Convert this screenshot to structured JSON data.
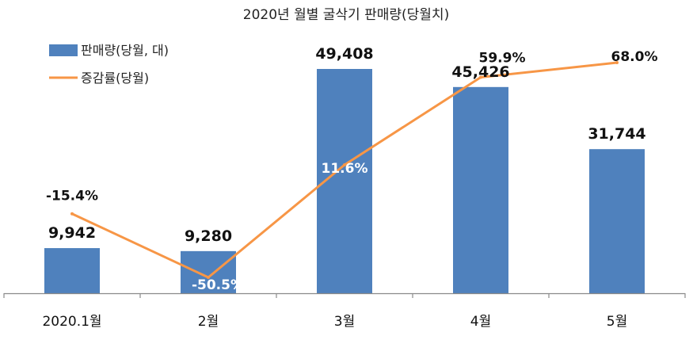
{
  "chart_data": {
    "type": "bar",
    "title": "2020년 월별 굴삭기 판매량(당월치)",
    "categories": [
      "2020.1월",
      "2월",
      "3월",
      "4월",
      "5월"
    ],
    "series": [
      {
        "name": "판매량(당월, 대)",
        "type": "bar",
        "values": [
          9942,
          9280,
          49408,
          45426,
          31744
        ],
        "labels": [
          "9,942",
          "9,280",
          "49,408",
          "45,426",
          "31,744"
        ],
        "color": "#4f81bd"
      },
      {
        "name": "증감률(당월)",
        "type": "line",
        "values": [
          -15.4,
          -50.5,
          11.6,
          59.9,
          68.0
        ],
        "labels": [
          "-15.4%",
          "-50.5%",
          "11.6%",
          "59.9%",
          "68.0%"
        ],
        "color": "#f79646"
      }
    ],
    "legend_position": "top-left",
    "grid": false
  }
}
